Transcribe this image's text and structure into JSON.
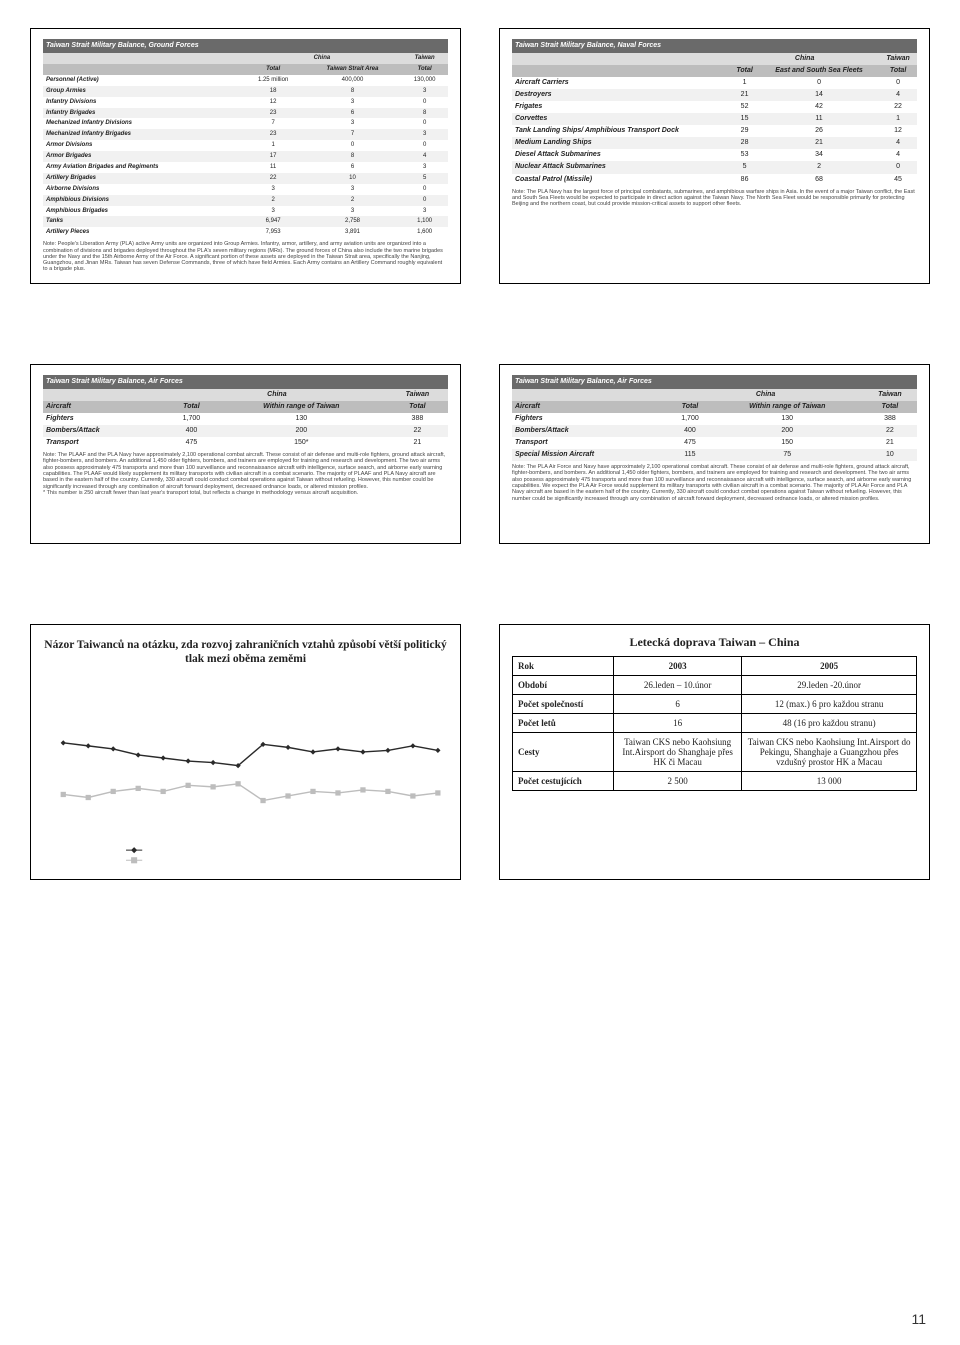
{
  "page_number": "11",
  "ground": {
    "title": "Taiwan Strait Military Balance, Ground Forces",
    "cols_top": [
      "China",
      "Taiwan"
    ],
    "cols_sub": [
      "Total",
      "Taiwan Strait Area",
      "Total"
    ],
    "rows": [
      {
        "label": "Personnel (Active)",
        "v": [
          "1.25 million",
          "400,000",
          "130,000"
        ]
      },
      {
        "label": "Group Armies",
        "v": [
          "18",
          "8",
          "3"
        ]
      },
      {
        "label": "Infantry Divisions",
        "v": [
          "12",
          "3",
          "0"
        ]
      },
      {
        "label": "Infantry Brigades",
        "v": [
          "23",
          "6",
          "8"
        ]
      },
      {
        "label": "Mechanized Infantry Divisions",
        "v": [
          "7",
          "3",
          "0"
        ]
      },
      {
        "label": "Mechanized Infantry Brigades",
        "v": [
          "23",
          "7",
          "3"
        ]
      },
      {
        "label": "Armor Divisions",
        "v": [
          "1",
          "0",
          "0"
        ]
      },
      {
        "label": "Armor Brigades",
        "v": [
          "17",
          "8",
          "4"
        ]
      },
      {
        "label": "Army Aviation Brigades and Regiments",
        "v": [
          "11",
          "6",
          "3"
        ]
      },
      {
        "label": "Artillery Brigades",
        "v": [
          "22",
          "10",
          "5"
        ]
      },
      {
        "label": "Airborne Divisions",
        "v": [
          "3",
          "3",
          "0"
        ]
      },
      {
        "label": "Amphibious Divisions",
        "v": [
          "2",
          "2",
          "0"
        ]
      },
      {
        "label": "Amphibious Brigades",
        "v": [
          "3",
          "3",
          "3"
        ]
      },
      {
        "label": "Tanks",
        "v": [
          "6,947",
          "2,758",
          "1,100"
        ]
      },
      {
        "label": "Artillery Pieces",
        "v": [
          "7,953",
          "3,891",
          "1,600"
        ]
      }
    ],
    "note": "Note: People's Liberation Army (PLA) active Army units are organized into Group Armies. Infantry, armor, artillery, and army aviation units are organized into a combination of divisions and brigades deployed throughout the PLA's seven military regions (MRs). The ground forces of China also include the two marine brigades under the Navy and the 15th Airborne Army of the Air Force. A significant portion of these assets are deployed in the Taiwan Strait area, specifically the Nanjing, Guangzhou, and Jinan MRs. Taiwan has seven Defense Commands, three of which have field Armies. Each Army contains an Artillery Command roughly equivalent to a brigade plus."
  },
  "naval": {
    "title": "Taiwan Strait Military Balance, Naval Forces",
    "cols_top": [
      "China",
      "Taiwan"
    ],
    "cols_sub": [
      "Total",
      "East and South Sea Fleets",
      "Total"
    ],
    "rows": [
      {
        "label": "Aircraft Carriers",
        "v": [
          "1",
          "0",
          "0"
        ]
      },
      {
        "label": "Destroyers",
        "v": [
          "21",
          "14",
          "4"
        ]
      },
      {
        "label": "Frigates",
        "v": [
          "52",
          "42",
          "22"
        ]
      },
      {
        "label": "Corvettes",
        "v": [
          "15",
          "11",
          "1"
        ]
      },
      {
        "label": "Tank Landing Ships/ Amphibious Transport Dock",
        "v": [
          "29",
          "26",
          "12"
        ]
      },
      {
        "label": "Medium Landing Ships",
        "v": [
          "28",
          "21",
          "4"
        ]
      },
      {
        "label": "Diesel Attack Submarines",
        "v": [
          "53",
          "34",
          "4"
        ]
      },
      {
        "label": "Nuclear Attack Submarines",
        "v": [
          "5",
          "2",
          "0"
        ]
      },
      {
        "label": "Coastal Patrol (Missile)",
        "v": [
          "86",
          "68",
          "45"
        ]
      }
    ],
    "note": "Note: The PLA Navy has the largest force of principal combatants, submarines, and amphibious warfare ships in Asia. In the event of a major Taiwan conflict, the East and South Sea Fleets would be expected to participate in direct action against the Taiwan Navy. The North Sea Fleet would be responsible primarily for protecting Beijing and the northern coast, but could provide mission-critical assets to support other fleets."
  },
  "air1": {
    "title": "Taiwan Strait Military Balance, Air Forces",
    "cols_top": [
      "China",
      "Taiwan"
    ],
    "first_col": "Aircraft",
    "cols_sub": [
      "Total",
      "Within range of Taiwan",
      "Total"
    ],
    "rows": [
      {
        "label": "Fighters",
        "v": [
          "1,700",
          "130",
          "388"
        ]
      },
      {
        "label": "Bombers/Attack",
        "v": [
          "400",
          "200",
          "22"
        ]
      },
      {
        "label": "Transport",
        "v": [
          "475",
          "150*",
          "21"
        ]
      }
    ],
    "note": "Note: The PLAAF and the PLA Navy have approximately 2,100 operational combat aircraft. These consist of air defense and multi-role fighters, ground attack aircraft, fighter-bombers, and bombers. An additional 1,450 older fighters, bombers, and trainers are employed for training and research and development. The two air arms also possess approximately 475 transports and more than 100 surveillance and reconnaissance aircraft with intelligence, surface search, and airborne early warning capabilities. The PLAAF would likely supplement its military transports with civilian aircraft in a combat scenario. The majority of PLAAF and PLA Navy aircraft are based in the eastern half of the country. Currently, 330 aircraft could conduct combat operations against Taiwan without refueling. However, this number could be significantly increased through any combination of aircraft forward deployment, decreased ordnance loads, or altered mission profiles.\n* This number is 250 aircraft fewer than last year's transport total, but reflects a change in methodology versus aircraft acquisition."
  },
  "air2": {
    "title": "Taiwan Strait Military Balance, Air Forces",
    "cols_top": [
      "China",
      "Taiwan"
    ],
    "first_col": "Aircraft",
    "cols_sub": [
      "Total",
      "Within range of Taiwan",
      "Total"
    ],
    "rows": [
      {
        "label": "Fighters",
        "v": [
          "1,700",
          "130",
          "388"
        ]
      },
      {
        "label": "Bombers/Attack",
        "v": [
          "400",
          "200",
          "22"
        ]
      },
      {
        "label": "Transport",
        "v": [
          "475",
          "150",
          "21"
        ]
      },
      {
        "label": "Special Mission Aircraft",
        "v": [
          "115",
          "75",
          "10"
        ]
      }
    ],
    "note": "Note: The PLA Air Force and Navy have approximately 2,100 operational combat aircraft. These consist of air defense and multi-role fighters, ground attack aircraft, fighter-bombers, and bombers. An additional 1,450 older fighters, bombers, and trainers are employed for training and research and development. The two air arms also possess approximately 475 transports and more than 100 surveillance and reconnaissance aircraft with intelligence, surface search, and airborne early warning capabilities. We expect the PLA Air Force would supplement its military transports with civilian aircraft in a combat scenario. The majority of PLA Air Force and PLA Navy aircraft are based in the eastern half of the country. Currently, 330 aircraft could conduct combat operations against Taiwan without refueling. However, this number could be significantly increased through any combination of aircraft forward deployment, decreased ordnance loads, or altered mission profiles."
  },
  "survey_chart": {
    "title": "Názor Taiwanců na otázku, zda rozvoj zahraničních  vztahů způsobí větší politický tlak mezi oběma zeměmi",
    "x_count": 16,
    "ylim": [
      0,
      100
    ],
    "series": [
      {
        "label": "dark",
        "color": "#2a2a2a",
        "marker": "diamond",
        "y": [
          60,
          58,
          56,
          52,
          50,
          48,
          47,
          45,
          59,
          57,
          54,
          56,
          54,
          55,
          58,
          55
        ]
      },
      {
        "label": "light",
        "color": "#bdbdbd",
        "marker": "square",
        "y": [
          26,
          24,
          28,
          30,
          28,
          32,
          31,
          33,
          22,
          25,
          28,
          27,
          29,
          28,
          25,
          27
        ]
      }
    ],
    "legend_markers": [
      {
        "color": "#2a2a2a",
        "shape": "diamond"
      },
      {
        "color": "#bdbdbd",
        "shape": "square"
      }
    ],
    "background": "#ffffff"
  },
  "air_transport": {
    "title": "Letecká doprava  Taiwan – China",
    "header": [
      "Rok",
      "2003",
      "2005"
    ],
    "rows": [
      {
        "label": "Období",
        "v": [
          "26.leden – 10.únor",
          "29.leden -20.únor"
        ]
      },
      {
        "label": "Počet společností",
        "v": [
          "6",
          "12 (max.) 6 pro každou stranu"
        ]
      },
      {
        "label": "Počet letů",
        "v": [
          "16",
          "48 (16 pro každou stranu)"
        ]
      },
      {
        "label": "Cesty",
        "v": [
          "Taiwan CKS nebo Kaohsiung Int.Airsport do Shanghaje přes HK či Macau",
          "Taiwan CKS nebo Kaohsiung Int.Airsport do Pekingu, Shanghaje a Guangzhou přes vzdušný prostor HK a Macau"
        ]
      },
      {
        "label": "Počet cestujících",
        "v": [
          "2 500",
          "13 000"
        ]
      }
    ]
  }
}
